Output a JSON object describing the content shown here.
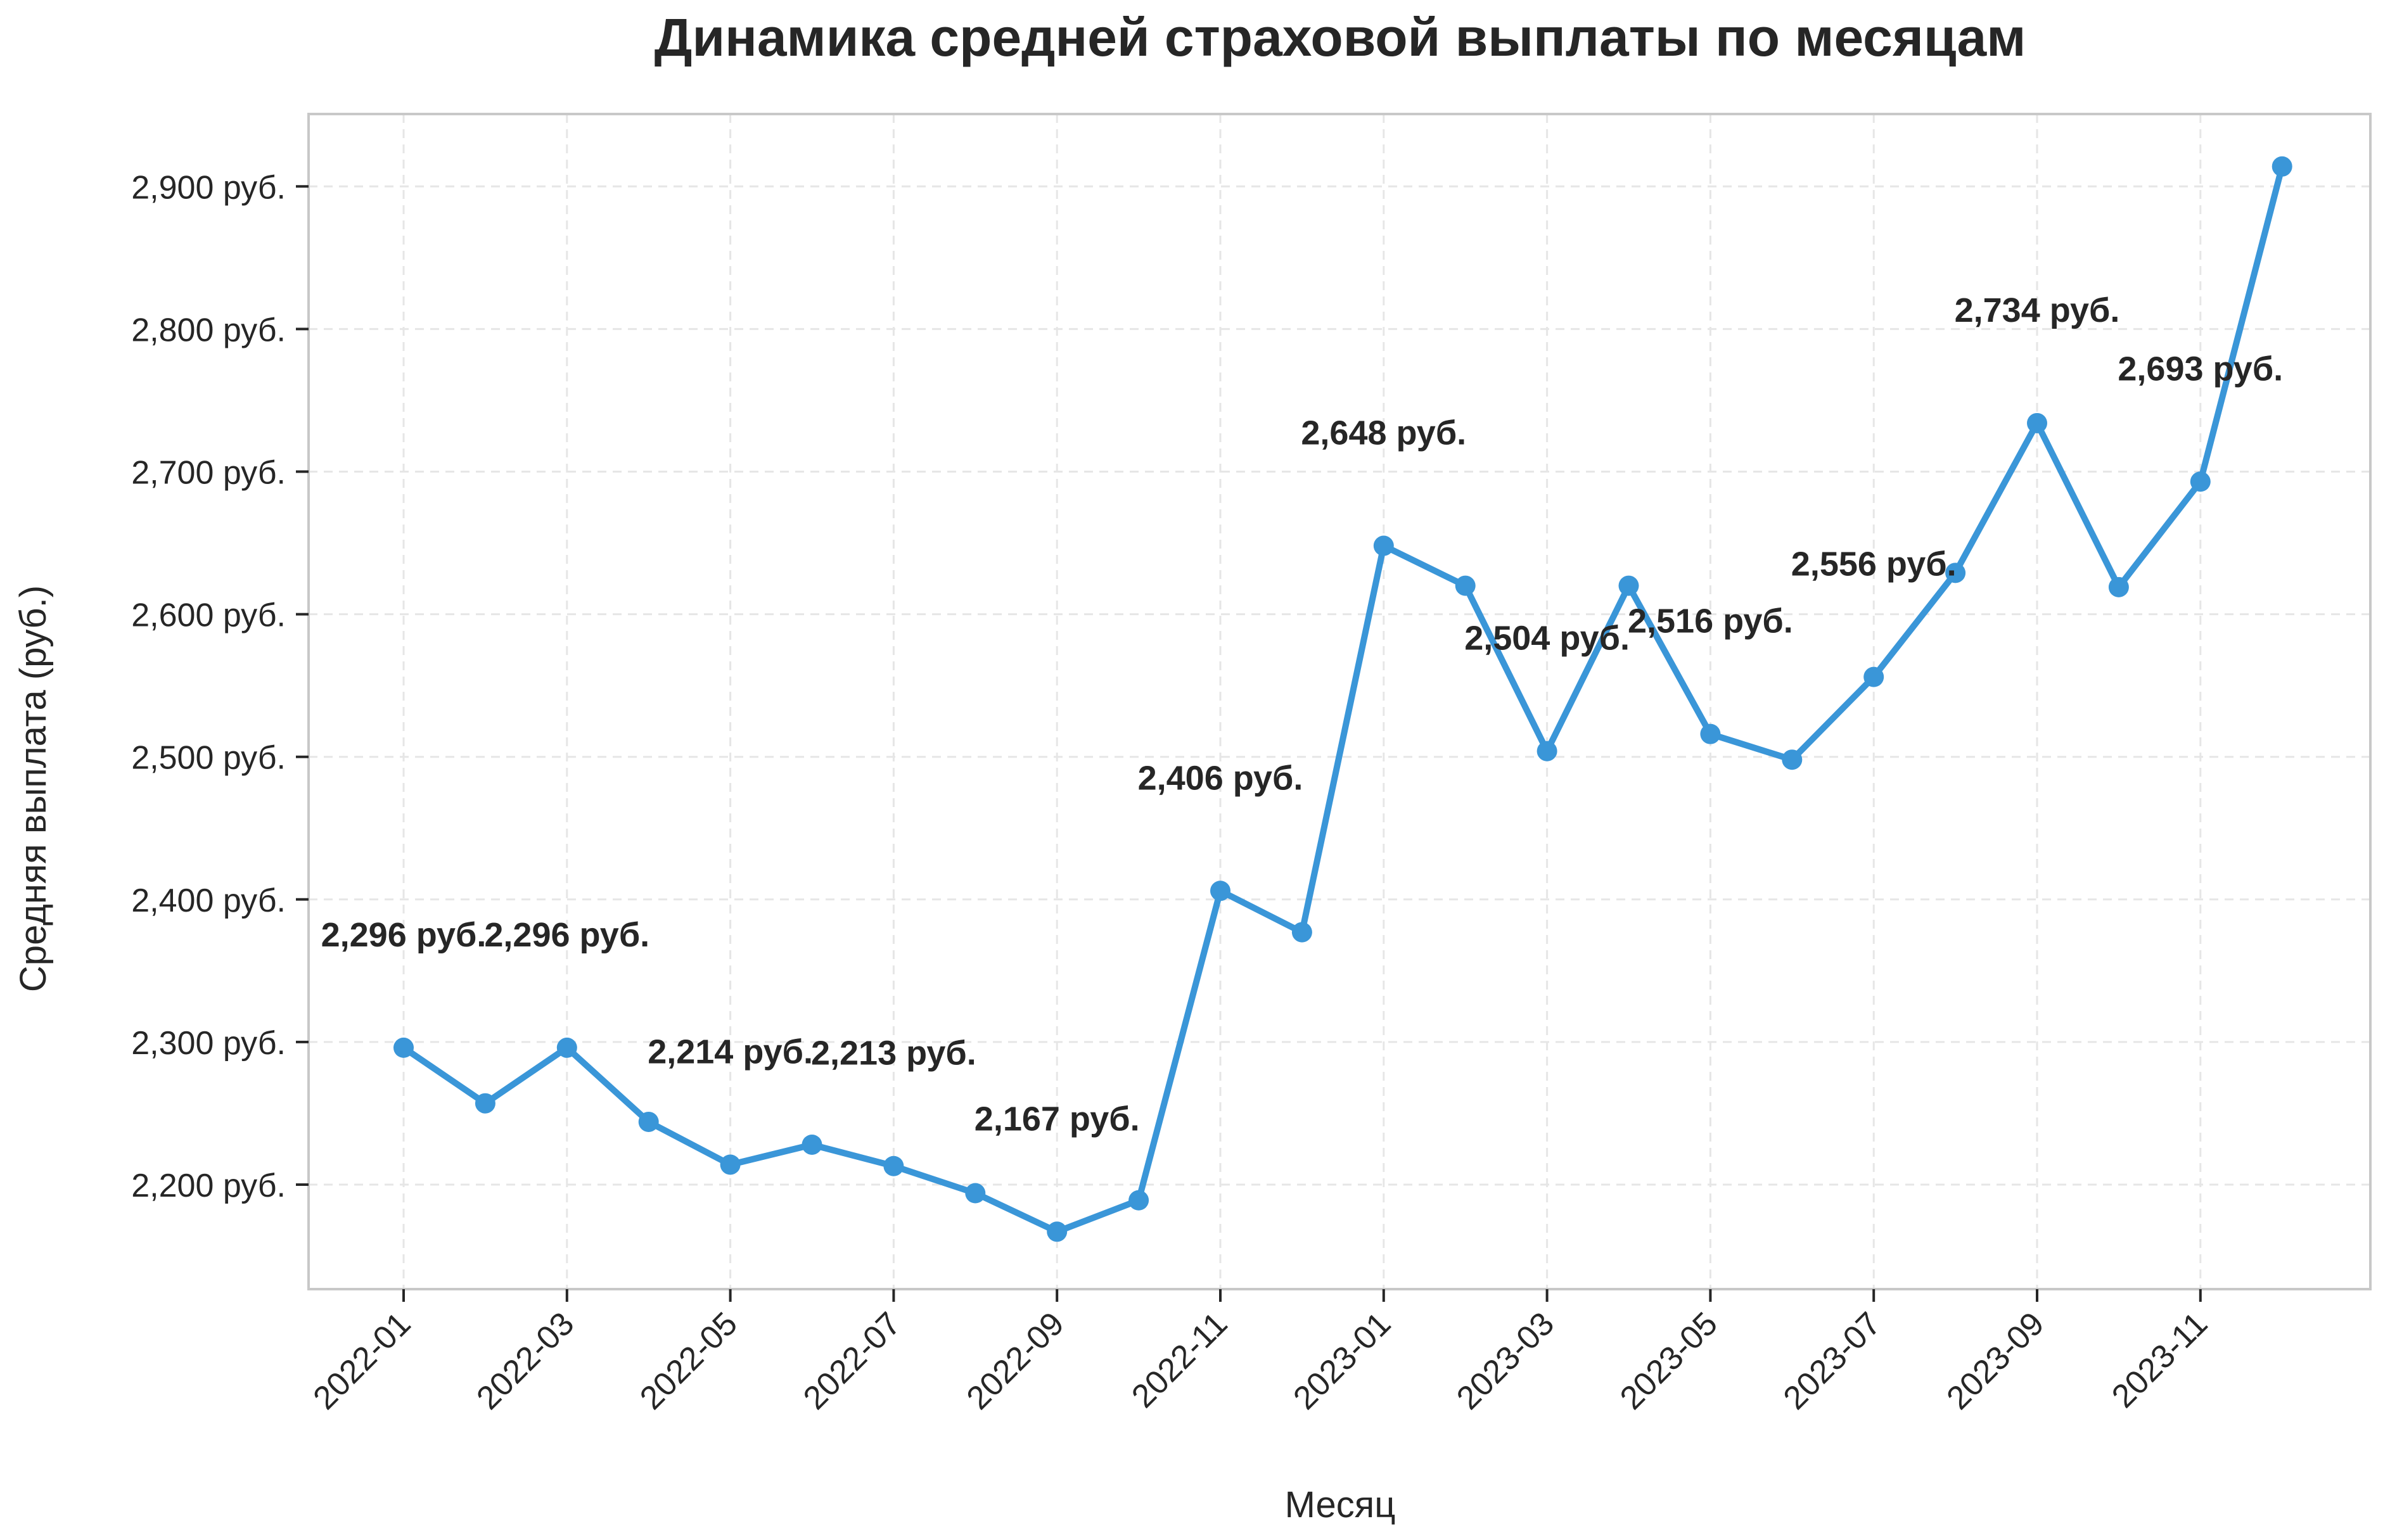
{
  "chart_data": {
    "type": "line",
    "title": "Динамика средней страховой выплаты по месяцам",
    "xlabel": "Месяц",
    "ylabel": "Средняя выплата (руб.)",
    "x": [
      "2022-01",
      "2022-02",
      "2022-03",
      "2022-04",
      "2022-05",
      "2022-06",
      "2022-07",
      "2022-08",
      "2022-09",
      "2022-10",
      "2022-11",
      "2022-12",
      "2023-01",
      "2023-02",
      "2023-03",
      "2023-04",
      "2023-05",
      "2023-06",
      "2023-07",
      "2023-08",
      "2023-09",
      "2023-10",
      "2023-11",
      "2023-12"
    ],
    "series": [
      {
        "values": [
          2296,
          2257,
          2296,
          2244,
          2214,
          2228,
          2213,
          2194,
          2167,
          2189,
          2406,
          2377,
          2648,
          2620,
          2504,
          2620,
          2516,
          2498,
          2556,
          2629,
          2734,
          2619,
          2693,
          2914
        ]
      }
    ],
    "x_ticks": [
      "2022-01",
      "2022-03",
      "2022-05",
      "2022-07",
      "2022-09",
      "2022-11",
      "2023-01",
      "2023-03",
      "2023-05",
      "2023-07",
      "2023-09",
      "2023-11"
    ],
    "y_ticks": [
      2200,
      2300,
      2400,
      2500,
      2600,
      2700,
      2800,
      2900
    ],
    "y_tick_labels": [
      "2,200 руб.",
      "2,300 руб.",
      "2,400 руб.",
      "2,500 руб.",
      "2,600 руб.",
      "2,700 руб.",
      "2,800 руб.",
      "2,900 руб."
    ],
    "annotations": [
      {
        "index": 0,
        "text": "2,296 руб."
      },
      {
        "index": 2,
        "text": "2,296 руб."
      },
      {
        "index": 4,
        "text": "2,214 руб."
      },
      {
        "index": 6,
        "text": "2,213 руб."
      },
      {
        "index": 8,
        "text": "2,167 руб."
      },
      {
        "index": 10,
        "text": "2,406 руб."
      },
      {
        "index": 12,
        "text": "2,648 руб."
      },
      {
        "index": 14,
        "text": "2,504 руб."
      },
      {
        "index": 16,
        "text": "2,516 руб."
      },
      {
        "index": 18,
        "text": "2,556 руб."
      },
      {
        "index": 20,
        "text": "2,734 руб."
      },
      {
        "index": 22,
        "text": "2,693 руб."
      }
    ],
    "ylim": [
      2132,
      2952
    ],
    "grid": true,
    "line_color": "#3a96d8",
    "grid_color": "#e6e6e6",
    "frame_color": "#c8c8c8"
  }
}
